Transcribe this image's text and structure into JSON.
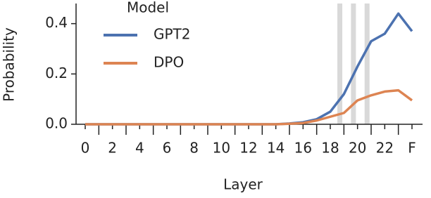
{
  "chart_data": {
    "type": "line",
    "x_label": "Layer",
    "y_label": "Probability",
    "categories": [
      "0",
      null,
      "2",
      null,
      "4",
      null,
      "6",
      null,
      "8",
      null,
      "10",
      null,
      "12",
      null,
      "14",
      null,
      "16",
      null,
      "18",
      null,
      "20",
      null,
      "22",
      null,
      "F"
    ],
    "legend_title": "Model",
    "legend_position": "upper left",
    "series": [
      {
        "name": "GPT2",
        "color": "#4c72b0",
        "values": [
          0,
          0,
          0,
          0,
          0,
          0,
          0,
          0,
          0,
          0,
          0,
          0,
          0,
          0,
          0,
          0.003,
          0.008,
          0.02,
          0.05,
          0.12,
          0.23,
          0.33,
          0.36,
          0.44,
          0.37
        ]
      },
      {
        "name": "DPO",
        "color": "#dd8452",
        "values": [
          0,
          0,
          0,
          0,
          0,
          0,
          0,
          0,
          0,
          0,
          0,
          0,
          0,
          0,
          0,
          0.002,
          0.005,
          0.015,
          0.03,
          0.045,
          0.095,
          0.115,
          0.13,
          0.135,
          0.095
        ]
      }
    ],
    "highlight_x": [
      18.7,
      19.7,
      20.7
    ],
    "highlight_color": "#d9d9d9",
    "ylim": [
      0,
      0.48
    ],
    "yticks": [
      {
        "value": 0,
        "label": "0.0"
      },
      0.2,
      0.4
    ]
  }
}
